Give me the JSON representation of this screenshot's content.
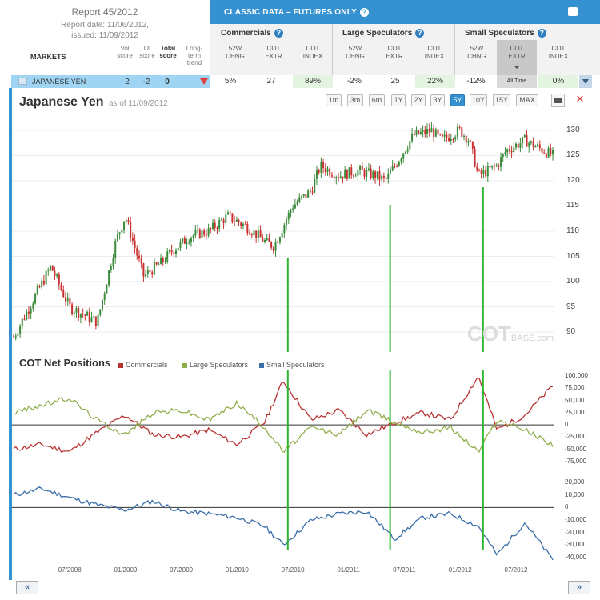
{
  "report": {
    "title": "Report 45/2012",
    "date_line": "Report date: 11/06/2012,",
    "issued_line": "issued: 11/09/2012"
  },
  "columns": {
    "markets": "MARKETS",
    "vol_score": [
      "Vol",
      "score"
    ],
    "oi_score": [
      "OI",
      "score"
    ],
    "total_score": [
      "Total",
      "score"
    ],
    "long_term_trend": [
      "Long-",
      "term",
      "trend"
    ]
  },
  "classic": {
    "title": "CLASSIC DATA – FUTURES ONLY",
    "help": "?",
    "groups": [
      "Commercials",
      "Large Speculators",
      "Small Speculators"
    ],
    "sub_headers": [
      [
        "52W",
        "CHNG"
      ],
      [
        "COT",
        "EXTR"
      ],
      [
        "COT",
        "INDEX"
      ],
      [
        "52W",
        "CHNG"
      ],
      [
        "COT",
        "EXTR"
      ],
      [
        "COT",
        "INDEX"
      ],
      [
        "52W",
        "CHNG"
      ],
      [
        "COT",
        "EXTR"
      ],
      [
        "COT",
        "INDEX"
      ]
    ]
  },
  "market_row": {
    "name": "JAPANESE YEN",
    "vol_score": "2",
    "oi_score": "-2",
    "total_score": "0",
    "trend": "down",
    "values": [
      "5%",
      "27",
      "89%",
      "-2%",
      "25",
      "22%",
      "-12%",
      "All Time",
      "0%"
    ],
    "highlight_color": "#e3f5e0"
  },
  "chart": {
    "title": "Japanese Yen",
    "as_of": "as of 11/09/2012",
    "ranges": [
      "1m",
      "3m",
      "6m",
      "1Y",
      "2Y",
      "3Y",
      "5Y",
      "10Y",
      "15Y",
      "MAX"
    ],
    "active_range": "5Y",
    "watermark_main": "COT",
    "watermark_sub": "BASE.com",
    "net_title": "COT Net Positions",
    "legend": [
      {
        "name": "Commercials",
        "color": "#b83232"
      },
      {
        "name": "Large Speculators",
        "color": "#8fae4a"
      },
      {
        "name": "Small Speculators",
        "color": "#3a6ea8"
      }
    ],
    "x_labels": [
      "07/2008",
      "01/2009",
      "07/2009",
      "01/2010",
      "07/2010",
      "01/2011",
      "07/2011",
      "01/2012",
      "07/2012"
    ],
    "nav_prev": "«",
    "nav_next": "»"
  },
  "chart_data": [
    {
      "type": "candlestick",
      "title": "Japanese Yen",
      "y_ticks": [
        "90",
        "95",
        "100",
        "105",
        "110",
        "115",
        "120",
        "125",
        "130"
      ],
      "ylim": [
        87,
        133
      ],
      "x_range": [
        "01/2008",
        "11/2012"
      ],
      "series": [
        {
          "x": [
            "01/2008",
            "03/2008",
            "05/2008",
            "07/2008",
            "09/2008",
            "10/2008",
            "12/2008",
            "01/2009",
            "02/2009",
            "03/2009",
            "05/2009",
            "06/2009",
            "08/2009",
            "10/2009",
            "12/2009",
            "02/2010",
            "04/2010",
            "05/2010",
            "07/2010",
            "09/2010",
            "10/2010",
            "12/2010",
            "02/2011",
            "04/2011",
            "05/2011",
            "07/2011",
            "08/2011",
            "10/2011",
            "11/2011",
            "01/2012",
            "02/2012",
            "03/2012",
            "05/2012",
            "06/2012",
            "08/2012",
            "09/2012",
            "11/2012"
          ],
          "y": [
            89,
            96,
            103,
            95,
            93,
            92,
            108,
            113,
            107,
            101,
            104,
            106,
            109,
            110,
            113,
            111,
            108,
            107,
            115,
            118,
            123,
            121,
            122,
            121,
            120,
            126,
            129,
            130,
            128,
            130,
            128,
            121,
            123,
            126,
            128,
            127,
            125
          ]
        }
      ]
    },
    {
      "type": "line",
      "title": "COT Net Positions",
      "y_ticks": [
        "100,000",
        "75,000",
        "50,000",
        "25,000",
        "0",
        "-25,000",
        "-50,000",
        "-75,000"
      ],
      "ylim": [
        -80000,
        100000
      ],
      "series": [
        {
          "name": "Commercials",
          "x": [
            "01/2008",
            "04/2008",
            "07/2008",
            "10/2008",
            "01/2009",
            "04/2009",
            "07/2009",
            "10/2009",
            "01/2010",
            "04/2010",
            "06/2010",
            "09/2010",
            "12/2010",
            "03/2011",
            "06/2011",
            "09/2011",
            "12/2011",
            "03/2012",
            "05/2012",
            "08/2012",
            "11/2012"
          ],
          "y": [
            -50000,
            -40000,
            -55000,
            -15000,
            20000,
            -20000,
            -25000,
            -10000,
            -40000,
            5000,
            90000,
            10000,
            30000,
            -20000,
            5000,
            25000,
            10000,
            100000,
            -10000,
            20000,
            80000
          ]
        },
        {
          "name": "Large Speculators",
          "x": [
            "01/2008",
            "04/2008",
            "07/2008",
            "10/2008",
            "01/2009",
            "04/2009",
            "07/2009",
            "10/2009",
            "01/2010",
            "04/2010",
            "06/2010",
            "09/2010",
            "12/2010",
            "03/2011",
            "06/2011",
            "09/2011",
            "12/2011",
            "03/2012",
            "05/2012",
            "08/2012",
            "11/2012"
          ],
          "y": [
            25000,
            40000,
            55000,
            10000,
            -20000,
            25000,
            30000,
            10000,
            45000,
            -5000,
            -55000,
            -5000,
            -20000,
            30000,
            5000,
            -15000,
            -5000,
            -55000,
            10000,
            -10000,
            -40000
          ]
        }
      ]
    },
    {
      "type": "line",
      "title": "COT Net Positions",
      "y_ticks": [
        "20,000",
        "10,000",
        "0",
        "-10,000",
        "-20,000",
        "-30,000",
        "-40,000"
      ],
      "ylim": [
        -42000,
        22000
      ],
      "series": [
        {
          "name": "Small Speculators",
          "x": [
            "01/2008",
            "04/2008",
            "07/2008",
            "10/2008",
            "01/2009",
            "04/2009",
            "07/2009",
            "10/2009",
            "01/2010",
            "04/2010",
            "06/2010",
            "09/2010",
            "12/2010",
            "03/2011",
            "06/2011",
            "09/2011",
            "12/2011",
            "03/2012",
            "05/2012",
            "08/2012",
            "11/2012"
          ],
          "y": [
            10000,
            15000,
            8000,
            2000,
            -2000,
            5000,
            -3000,
            -5000,
            -8000,
            -15000,
            -30000,
            -10000,
            -5000,
            -3000,
            -25000,
            -8000,
            -5000,
            -15000,
            -38000,
            -12000,
            -42000
          ]
        }
      ]
    }
  ]
}
